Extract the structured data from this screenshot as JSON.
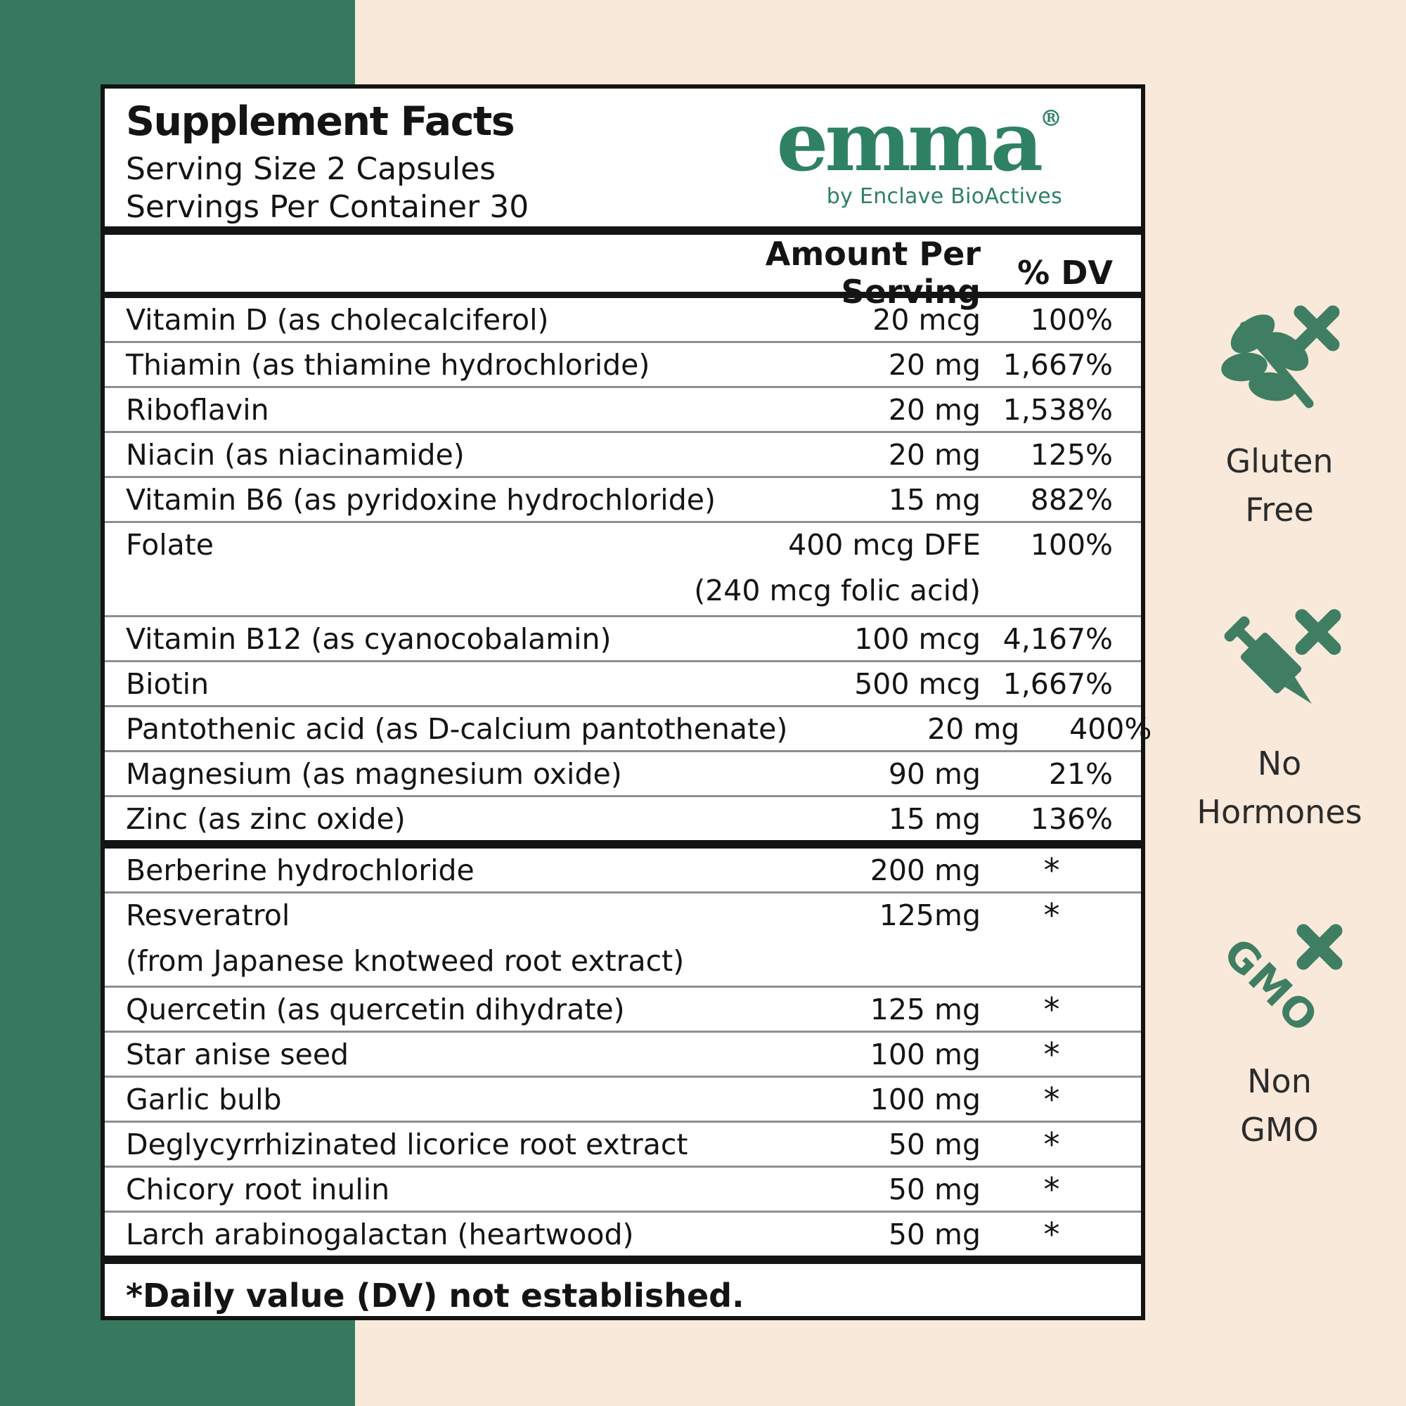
{
  "panel": {
    "title": "Supplement Facts",
    "serving_size": "Serving Size 2 Capsules",
    "servings_per_container": "Servings Per Container 30",
    "logo": {
      "brand": "emma",
      "reg": "®",
      "byline": "by Enclave BioActives"
    },
    "columns": {
      "amount": "Amount Per Serving",
      "dv": "% DV"
    },
    "section1": [
      {
        "name": "Vitamin D (as cholecalciferol)",
        "amount": "20 mcg",
        "dv": "100%"
      },
      {
        "name": "Thiamin (as thiamine hydrochloride)",
        "amount": "20 mg",
        "dv": "1,667%"
      },
      {
        "name": "Riboflavin",
        "amount": "20 mg",
        "dv": "1,538%"
      },
      {
        "name": "Niacin (as niacinamide)",
        "amount": "20 mg",
        "dv": "125%"
      },
      {
        "name": "Vitamin B6 (as pyridoxine hydrochloride)",
        "amount": "15 mg",
        "dv": "882%"
      },
      {
        "name": "Folate",
        "amount": "400 mcg DFE",
        "dv": "100%",
        "note": "(240 mcg folic acid)",
        "note_align": "right"
      },
      {
        "name": "Vitamin B12 (as cyanocobalamin)",
        "amount": "100 mcg",
        "dv": "4,167%"
      },
      {
        "name": "Biotin",
        "amount": "500 mcg",
        "dv": "1,667%"
      },
      {
        "name": "Pantothenic acid (as D-calcium pantothenate)",
        "amount": "20 mg",
        "dv": "400%"
      },
      {
        "name": "Magnesium (as magnesium oxide)",
        "amount": "90 mg",
        "dv": "21%"
      },
      {
        "name": "Zinc (as zinc oxide)",
        "amount": "15 mg",
        "dv": "136%"
      }
    ],
    "section2": [
      {
        "name": "Berberine hydrochloride",
        "amount": "200 mg",
        "dv": "*"
      },
      {
        "name": "Resveratrol",
        "amount": "125mg",
        "dv": "*",
        "note": "(from Japanese knotweed root extract)",
        "note_align": "left"
      },
      {
        "name": "Quercetin (as quercetin dihydrate)",
        "amount": "125 mg",
        "dv": "*"
      },
      {
        "name": "Star anise seed",
        "amount": "100 mg",
        "dv": "*"
      },
      {
        "name": "Garlic bulb",
        "amount": "100 mg",
        "dv": "*"
      },
      {
        "name": "Deglycyrrhizinated licorice root extract",
        "amount": "50 mg",
        "dv": "*"
      },
      {
        "name": "Chicory root inulin",
        "amount": "50 mg",
        "dv": "*"
      },
      {
        "name": "Larch arabinogalactan (heartwood)",
        "amount": "50 mg",
        "dv": "*"
      }
    ],
    "footnote": "*Daily value (DV) not established."
  },
  "badges": [
    {
      "icon": "gluten-free-icon",
      "line1": "Gluten",
      "line2": "Free"
    },
    {
      "icon": "no-hormones-icon",
      "line1": "No",
      "line2": "Hormones"
    },
    {
      "icon": "non-gmo-icon",
      "line1": "Non",
      "line2": "GMO",
      "icon_text": "GMO"
    }
  ],
  "colors": {
    "green_bar": "#36795F",
    "green_logo": "#2E8162",
    "green_icon": "#3F7E63",
    "beige_background": "#F8E9DA",
    "panel_ink": "#141414"
  }
}
